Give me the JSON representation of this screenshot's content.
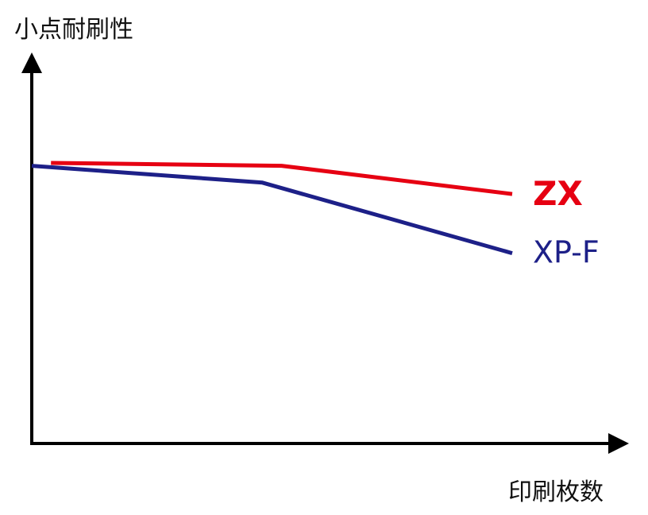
{
  "chart_data": {
    "type": "line",
    "ylabel": "小点耐刷性",
    "xlabel": "印刷枚数",
    "xlim": [
      0,
      100
    ],
    "ylim": [
      0,
      100
    ],
    "axis_ticks": false,
    "grid": false,
    "series": [
      {
        "name": "ZX",
        "color": "#e60012",
        "label_weight": "bold",
        "x": [
          4,
          52,
          100
        ],
        "y": [
          100,
          99,
          89
        ]
      },
      {
        "name": "XP-F",
        "color": "#1d2088",
        "label_weight": "normal",
        "x": [
          0,
          48,
          100
        ],
        "y": [
          99,
          93,
          68
        ]
      }
    ]
  }
}
